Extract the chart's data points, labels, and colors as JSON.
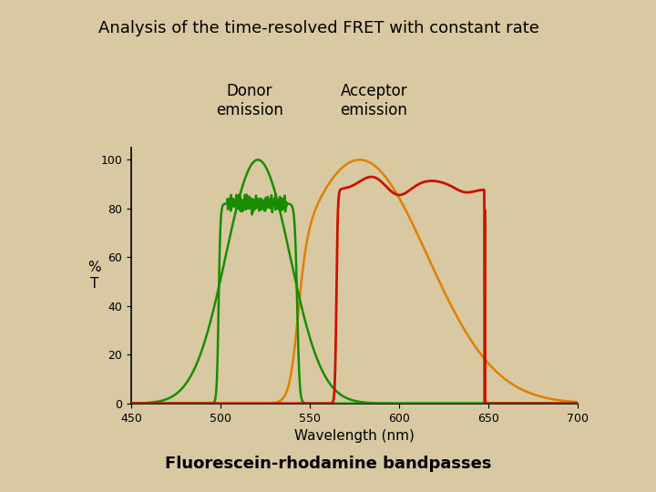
{
  "title": "Analysis of the time-resolved FRET with constant rate",
  "subtitle": "Fluorescein-rhodamine bandpasses",
  "donor_label": "Donor\nemission",
  "acceptor_label": "Acceptor\nemission",
  "xlabel": "Wavelength (nm)",
  "ylabel": "%\nT",
  "xlim": [
    450,
    700
  ],
  "ylim": [
    0,
    105
  ],
  "xticks": [
    450,
    500,
    550,
    600,
    650,
    700
  ],
  "yticks": [
    0,
    20,
    40,
    60,
    80,
    100
  ],
  "background_color": "#d8c9a3",
  "axes_bg": "none",
  "green_color": "#1a8c00",
  "orange_color": "#e08000",
  "red_color": "#cc1100",
  "title_fontsize": 13,
  "subtitle_fontsize": 13,
  "axis_fontsize": 11,
  "label_fontsize": 12,
  "tick_fontsize": 9
}
